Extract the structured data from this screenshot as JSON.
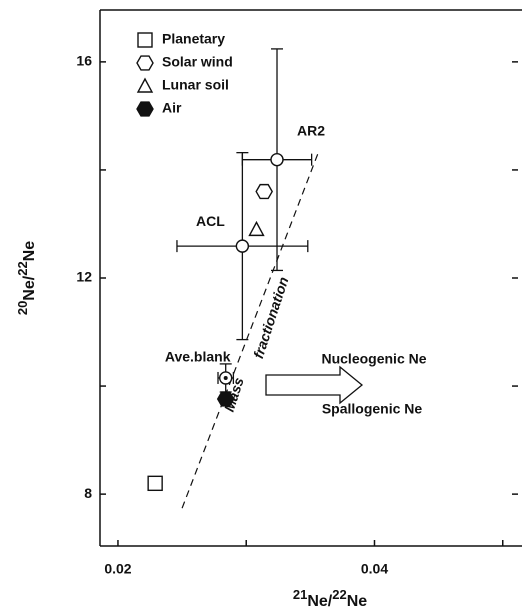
{
  "chart_data": {
    "type": "scatter",
    "x_label": [
      "21",
      "Ne/",
      "22",
      "Ne"
    ],
    "y_label": [
      "20",
      "Ne/",
      "22",
      "Ne"
    ],
    "xlim": [
      0.0186,
      0.0515
    ],
    "ylim": [
      7.04,
      16.96
    ],
    "xticks": [
      0.02,
      0.03,
      0.04,
      0.05
    ],
    "xtick_labels": [
      {
        "value": 0.02,
        "label": "0.02"
      },
      {
        "value": 0.04,
        "label": "0.04"
      }
    ],
    "yticks": [
      8,
      10,
      12,
      14,
      16
    ],
    "ytick_labels": [
      8,
      12,
      16
    ],
    "series": [
      {
        "name": "Planetary",
        "marker": "square",
        "x": [
          0.0229
        ],
        "y": [
          8.2
        ]
      },
      {
        "name": "Solar wind",
        "marker": "hexagon",
        "x": [
          0.0314
        ],
        "y": [
          13.6
        ]
      },
      {
        "name": "Lunar soil",
        "marker": "triangle",
        "x": [
          0.0308
        ],
        "y": [
          12.9
        ]
      },
      {
        "name": "Air",
        "marker": "filled-hexagon",
        "x": [
          0.0284
        ],
        "y": [
          9.76
        ]
      }
    ],
    "samples": [
      {
        "name": "AR2",
        "marker": "circle",
        "x": 0.0324,
        "y": 14.19,
        "xerr": 0.0027,
        "yerr": 2.05
      },
      {
        "name": "ACL",
        "marker": "circle",
        "x": 0.0297,
        "y": 12.59,
        "xerr": 0.0051,
        "yerr": 1.73
      },
      {
        "name": "Ave.blank",
        "marker": "dotted-circle",
        "x": 0.0284,
        "y": 10.15,
        "xerr": 0.0006,
        "yerr": 0.26
      }
    ],
    "fit_line": {
      "x": [
        0.025,
        0.0356
      ],
      "y": [
        7.74,
        14.31
      ]
    },
    "annotations": [
      "Mass",
      "fractionation",
      "Nucleogenic Ne",
      "Spallogenic Ne"
    ]
  }
}
